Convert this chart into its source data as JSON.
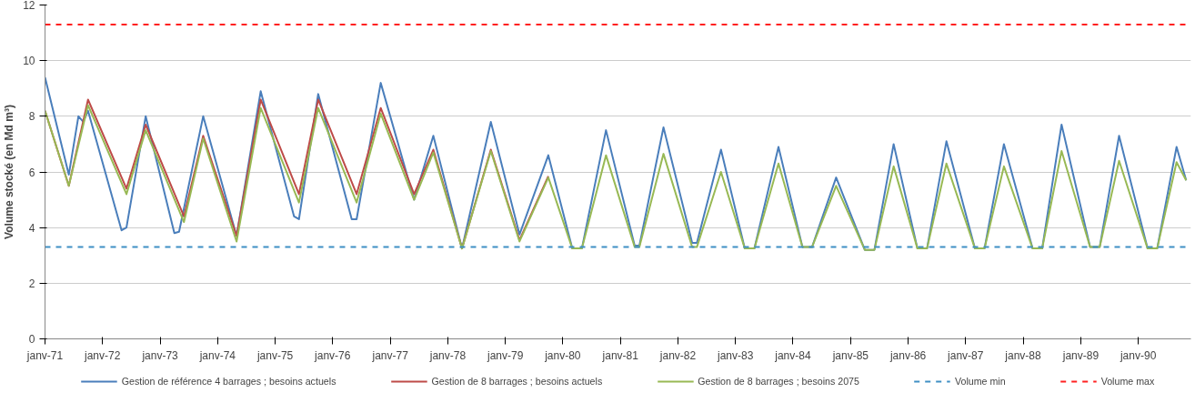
{
  "chart_data": {
    "type": "line",
    "ylabel": "Volume stocké (en Md m³)",
    "xlim": [
      "1971-01",
      "1990-12"
    ],
    "ylim": [
      0,
      12
    ],
    "yticks": [
      0,
      2,
      4,
      6,
      8,
      10,
      12
    ],
    "xticks": [
      {
        "value": "1971-01",
        "label": "janv-71"
      },
      {
        "value": "1972-01",
        "label": "janv-72"
      },
      {
        "value": "1973-01",
        "label": "janv-73"
      },
      {
        "value": "1974-01",
        "label": "janv-74"
      },
      {
        "value": "1975-01",
        "label": "janv-75"
      },
      {
        "value": "1976-01",
        "label": "janv-76"
      },
      {
        "value": "1977-01",
        "label": "janv-77"
      },
      {
        "value": "1978-01",
        "label": "janv-78"
      },
      {
        "value": "1979-01",
        "label": "janv-79"
      },
      {
        "value": "1980-01",
        "label": "janv-80"
      },
      {
        "value": "1981-01",
        "label": "janv-81"
      },
      {
        "value": "1982-01",
        "label": "janv-82"
      },
      {
        "value": "1983-01",
        "label": "janv-83"
      },
      {
        "value": "1984-01",
        "label": "janv-84"
      },
      {
        "value": "1985-01",
        "label": "janv-85"
      },
      {
        "value": "1986-01",
        "label": "janv-86"
      },
      {
        "value": "1987-01",
        "label": "janv-87"
      },
      {
        "value": "1988-01",
        "label": "janv-88"
      },
      {
        "value": "1989-01",
        "label": "janv-89"
      },
      {
        "value": "1990-01",
        "label": "janv-90"
      }
    ],
    "grid": "y",
    "legend": "bottom",
    "marker": "none",
    "line_style": "solid",
    "series": [
      {
        "name": "Gestion de référence 4 barrages ; besoins actuels",
        "color": "#4a7ebb",
        "x": [
          "1971-01",
          "1971-06",
          "1971-08",
          "1971-09",
          "1971-10",
          "1972-05",
          "1972-06",
          "1972-10",
          "1973-04",
          "1973-05",
          "1973-10",
          "1974-05",
          "1974-10",
          "1975-05",
          "1975-06",
          "1975-10",
          "1976-05",
          "1976-06",
          "1976-11",
          "1977-06",
          "1977-10",
          "1978-04",
          "1978-10",
          "1979-04",
          "1979-10",
          "1980-03",
          "1980-05",
          "1980-10",
          "1981-04",
          "1981-05",
          "1981-10",
          "1982-04",
          "1982-05",
          "1982-10",
          "1983-03",
          "1983-05",
          "1983-10",
          "1984-03",
          "1984-05",
          "1984-10",
          "1985-04",
          "1985-06",
          "1985-10",
          "1986-03",
          "1986-05",
          "1986-09",
          "1987-03",
          "1987-05",
          "1987-09",
          "1988-03",
          "1988-05",
          "1988-09",
          "1989-03",
          "1989-05",
          "1989-09",
          "1990-03",
          "1990-05",
          "1990-09",
          "1990-11"
        ],
        "values": [
          9.4,
          5.9,
          8.0,
          7.8,
          8.2,
          3.9,
          4.0,
          8.0,
          3.8,
          3.85,
          8.0,
          3.7,
          8.9,
          4.4,
          4.3,
          8.8,
          4.3,
          4.3,
          9.2,
          5.0,
          7.3,
          3.25,
          7.8,
          3.75,
          6.6,
          3.25,
          3.25,
          7.5,
          3.35,
          3.35,
          7.6,
          3.45,
          3.45,
          6.8,
          3.25,
          3.25,
          6.9,
          3.3,
          3.3,
          5.8,
          3.2,
          3.2,
          7.0,
          3.25,
          3.25,
          7.1,
          3.25,
          3.25,
          7.0,
          3.25,
          3.25,
          7.7,
          3.3,
          3.3,
          7.3,
          3.25,
          3.25,
          6.9,
          5.7
        ]
      },
      {
        "name": "Gestion de 8 barrages ; besoins actuels",
        "color": "#be4b48",
        "x": [
          "1971-01",
          "1971-06",
          "1971-10",
          "1972-06",
          "1972-10",
          "1973-06",
          "1973-10",
          "1974-05",
          "1974-10",
          "1975-06",
          "1975-10",
          "1976-06",
          "1976-11",
          "1977-06",
          "1977-10",
          "1978-04",
          "1978-10",
          "1979-04",
          "1979-10"
        ],
        "values": [
          8.2,
          5.5,
          8.6,
          5.4,
          7.7,
          4.4,
          7.3,
          3.7,
          8.6,
          5.2,
          8.6,
          5.2,
          8.3,
          5.2,
          6.8,
          3.25,
          6.8,
          3.55,
          5.85
        ]
      },
      {
        "name": "Gestion de 8 barrages ; besoins 2075",
        "color": "#98b954",
        "x": [
          "1971-01",
          "1971-06",
          "1971-10",
          "1972-06",
          "1972-10",
          "1973-06",
          "1973-10",
          "1974-05",
          "1974-10",
          "1975-06",
          "1975-10",
          "1976-06",
          "1976-11",
          "1977-06",
          "1977-10",
          "1978-04",
          "1978-10",
          "1979-04",
          "1979-10",
          "1980-03",
          "1980-05",
          "1980-10",
          "1981-04",
          "1981-05",
          "1981-10",
          "1982-04",
          "1982-05",
          "1982-10",
          "1983-03",
          "1983-05",
          "1983-10",
          "1984-03",
          "1984-05",
          "1984-10",
          "1985-04",
          "1985-06",
          "1985-10",
          "1986-03",
          "1986-05",
          "1986-09",
          "1987-03",
          "1987-05",
          "1987-09",
          "1988-03",
          "1988-05",
          "1988-09",
          "1989-03",
          "1989-05",
          "1989-09",
          "1990-03",
          "1990-05",
          "1990-09",
          "1990-11"
        ],
        "values": [
          8.2,
          5.5,
          8.4,
          5.2,
          7.5,
          4.2,
          7.2,
          3.5,
          8.3,
          4.9,
          8.3,
          4.9,
          8.1,
          5.0,
          6.7,
          3.25,
          6.75,
          3.5,
          5.8,
          3.25,
          3.25,
          6.6,
          3.3,
          3.3,
          6.65,
          3.3,
          3.3,
          6.0,
          3.25,
          3.25,
          6.3,
          3.3,
          3.3,
          5.5,
          3.2,
          3.2,
          6.2,
          3.25,
          3.25,
          6.3,
          3.25,
          3.25,
          6.2,
          3.25,
          3.25,
          6.75,
          3.3,
          3.3,
          6.4,
          3.25,
          3.25,
          6.35,
          5.7
        ]
      }
    ],
    "ref_lines": [
      {
        "axis": "y",
        "value": 3.3,
        "label": "Volume min",
        "color": "#3f8fc4",
        "line_style": "dashed"
      },
      {
        "axis": "y",
        "value": 11.3,
        "label": "Volume max",
        "color": "#ff2020",
        "line_style": "dashed"
      }
    ]
  }
}
